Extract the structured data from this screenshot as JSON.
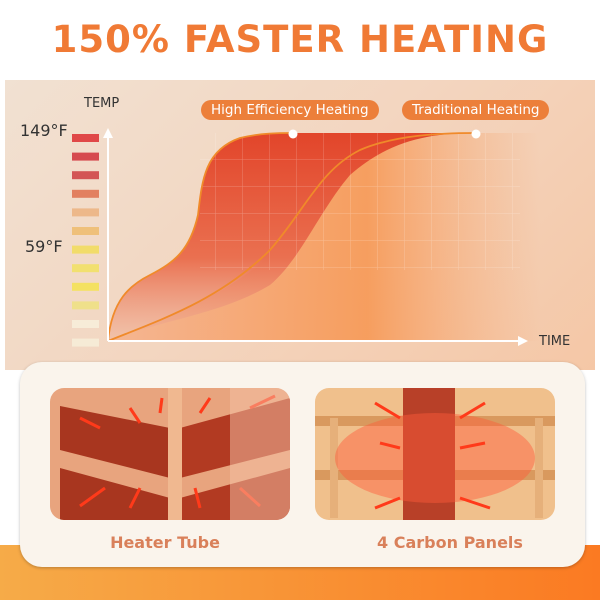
{
  "title": "150% FASTER HEATING",
  "chart": {
    "y_axis_label": "TEMP",
    "x_axis_label": "TIME",
    "y_ticks": [
      "149°F",
      "59°F"
    ],
    "legend": [
      "High Efficiency Heating",
      "Traditional Heating"
    ],
    "temperature_scale_colors": [
      "#e04848",
      "#d64a4f",
      "#d35555",
      "#e28060",
      "#edb88a",
      "#efc07a",
      "#f2dc6a",
      "#f2e070",
      "#f4e162",
      "#efe08a",
      "#f7ecd8",
      "#f6ebd6"
    ]
  },
  "comparison": {
    "left_caption": "Heater Tube",
    "right_caption": "4 Carbon Panels"
  },
  "colors": {
    "accent": "#f07a35",
    "caption": "#d9805a",
    "pill": "#ec7f3a"
  }
}
